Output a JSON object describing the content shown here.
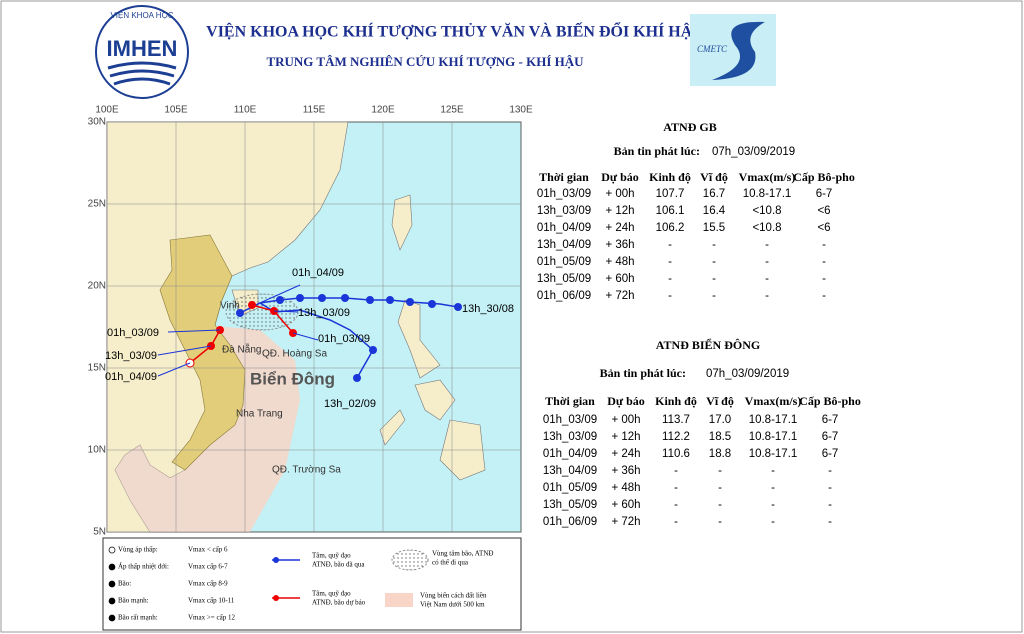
{
  "header": {
    "institute": "VIỆN KHOA HỌC KHÍ TƯỢNG THỦY VĂN VÀ BIẾN ĐỔI KHÍ HẬU",
    "center": "TRUNG TÂM NGHIÊN CỨU KHÍ TƯỢNG - KHÍ HẬU",
    "logo_left": "IMHEN",
    "logo_left_arc": "VIỆN KHOA HỌC",
    "logo_right": "CMETC"
  },
  "map": {
    "lon_labels": [
      "100E",
      "105E",
      "110E",
      "115E",
      "120E",
      "125E",
      "130E"
    ],
    "lat_labels": [
      "30N",
      "25N",
      "20N",
      "15N",
      "10N",
      "5N"
    ],
    "places": {
      "vinh": "Vinh",
      "danang": "Đà Nẵng",
      "nhatrang": "Nha Trang",
      "hoangsa": "QĐ. Hoàng Sa",
      "truongsa": "QĐ. Trường Sa",
      "biendong": "Biển Đông"
    },
    "track_labels": {
      "t1": "13h_30/08",
      "t2": "13h_02/09",
      "t3": "01h_03/09",
      "t4": "13h_03/09",
      "t5": "01h_04/09",
      "g1": "01h_03/09",
      "g2": "13h_03/09",
      "g3": "01h_04/09"
    }
  },
  "legend": {
    "items": [
      [
        "Vùng áp thấp:",
        "Vmax < cấp 6"
      ],
      [
        "Áp thấp nhiệt đới:",
        "Vmax cấp 6-7"
      ],
      [
        "Bão:",
        "Vmax cấp 8-9"
      ],
      [
        "Bão mạnh:",
        "Vmax cấp 10-11"
      ],
      [
        "Bão rất mạnh:",
        "Vmax >= cấp 12"
      ]
    ],
    "past": [
      "Tâm, quỹ đạo",
      "ATNĐ, bão đã qua"
    ],
    "forecast": [
      "Tâm, quỹ đạo",
      "ATNĐ, bão dự báo"
    ],
    "zone": [
      "Vùng tâm bão, ATNĐ",
      "có thể đi qua"
    ],
    "coast": [
      "Vùng biển cách đất liền",
      "Việt Nam dưới 500 km"
    ]
  },
  "tables": [
    {
      "title": "ATNĐ GB",
      "issued_label": "Bản tin phát lúc:",
      "issued": "07h_03/09/2019",
      "columns": [
        "Thời gian",
        "Dự báo",
        "Kinh độ",
        "Vĩ độ",
        "Vmax(m/s)",
        "Cấp Bô-pho"
      ],
      "rows": [
        [
          "01h_03/09",
          "+ 00h",
          "107.7",
          "16.7",
          "10.8-17.1",
          "6-7"
        ],
        [
          "13h_03/09",
          "+ 12h",
          "106.1",
          "16.4",
          "<10.8",
          "<6"
        ],
        [
          "01h_04/09",
          "+ 24h",
          "106.2",
          "15.5",
          "<10.8",
          "<6"
        ],
        [
          "13h_04/09",
          "+ 36h",
          "-",
          "-",
          "-",
          "-"
        ],
        [
          "01h_05/09",
          "+ 48h",
          "-",
          "-",
          "-",
          "-"
        ],
        [
          "13h_05/09",
          "+ 60h",
          "-",
          "-",
          "-",
          "-"
        ],
        [
          "01h_06/09",
          "+ 72h",
          "-",
          "-",
          "-",
          "-"
        ]
      ]
    },
    {
      "title": "ATNĐ BIỂN ĐÔNG",
      "issued_label": "Bản tin phát lúc:",
      "issued": "07h_03/09/2019",
      "columns": [
        "Thời gian",
        "Dự báo",
        "Kinh độ",
        "Vĩ độ",
        "Vmax(m/s)",
        "Cấp Bô-pho"
      ],
      "rows": [
        [
          "01h_03/09",
          "+ 00h",
          "113.7",
          "17.0",
          "10.8-17.1",
          "6-7"
        ],
        [
          "13h_03/09",
          "+ 12h",
          "112.2",
          "18.5",
          "10.8-17.1",
          "6-7"
        ],
        [
          "01h_04/09",
          "+ 24h",
          "110.6",
          "18.8",
          "10.8-17.1",
          "6-7"
        ],
        [
          "13h_04/09",
          "+ 36h",
          "-",
          "-",
          "-",
          "-"
        ],
        [
          "01h_05/09",
          "+ 48h",
          "-",
          "-",
          "-",
          "-"
        ],
        [
          "13h_05/09",
          "+ 60h",
          "-",
          "-",
          "-",
          "-"
        ],
        [
          "01h_06/09",
          "+ 72h",
          "-",
          "-",
          "-",
          "-"
        ]
      ]
    }
  ]
}
